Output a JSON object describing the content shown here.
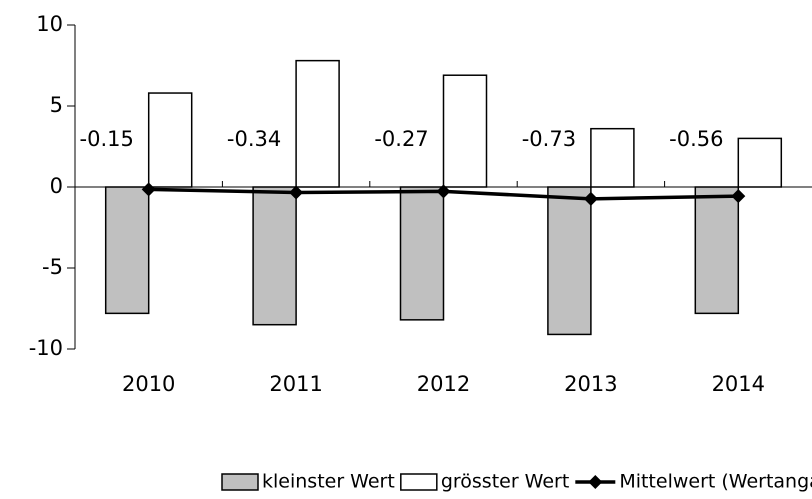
{
  "chart_data": {
    "type": "bar",
    "categories": [
      "2010",
      "2011",
      "2012",
      "2013",
      "2014"
    ],
    "series": [
      {
        "name": "kleinster Wert",
        "color": "#c0c0c0",
        "values": [
          -7.8,
          -8.5,
          -8.2,
          -9.1,
          -7.8
        ]
      },
      {
        "name": "grösster Wert",
        "color": "#ffffff",
        "values": [
          5.8,
          7.8,
          6.9,
          3.6,
          3.0
        ]
      },
      {
        "name": "Mittelwert (Wertangabe)",
        "color": "#000000",
        "type": "line",
        "values": [
          -0.15,
          -0.34,
          -0.27,
          -0.73,
          -0.56
        ]
      }
    ],
    "ylim": [
      -10,
      10
    ],
    "yticks": [
      -10,
      -5,
      0,
      5,
      10
    ],
    "grid": false,
    "legend": "bottom"
  }
}
